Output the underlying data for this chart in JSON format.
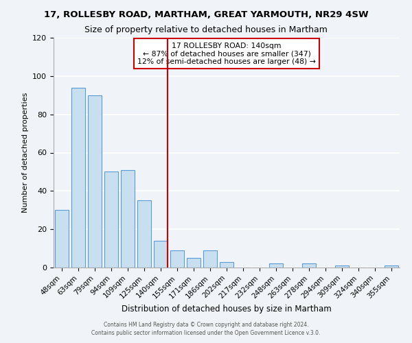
{
  "title": "17, ROLLESBY ROAD, MARTHAM, GREAT YARMOUTH, NR29 4SW",
  "subtitle": "Size of property relative to detached houses in Martham",
  "xlabel": "Distribution of detached houses by size in Martham",
  "ylabel": "Number of detached properties",
  "bar_labels": [
    "48sqm",
    "63sqm",
    "79sqm",
    "94sqm",
    "109sqm",
    "125sqm",
    "140sqm",
    "155sqm",
    "171sqm",
    "186sqm",
    "202sqm",
    "217sqm",
    "232sqm",
    "248sqm",
    "263sqm",
    "278sqm",
    "294sqm",
    "309sqm",
    "324sqm",
    "340sqm",
    "355sqm"
  ],
  "bar_values": [
    30,
    94,
    90,
    50,
    51,
    35,
    14,
    9,
    5,
    9,
    3,
    0,
    0,
    2,
    0,
    2,
    0,
    1,
    0,
    0,
    1
  ],
  "highlight_index": 6,
  "bar_color": "#c8dff0",
  "bar_edge_color": "#5b9bd5",
  "highlight_line_color": "#cc0000",
  "annotation_text": "17 ROLLESBY ROAD: 140sqm\n← 87% of detached houses are smaller (347)\n12% of semi-detached houses are larger (48) →",
  "annotation_box_edge": "#cc0000",
  "ylim": [
    0,
    120
  ],
  "yticks": [
    0,
    20,
    40,
    60,
    80,
    100,
    120
  ],
  "footer1": "Contains HM Land Registry data © Crown copyright and database right 2024.",
  "footer2": "Contains public sector information licensed under the Open Government Licence v.3.0.",
  "bg_color": "#f0f4f8",
  "grid_color": "#ffffff"
}
